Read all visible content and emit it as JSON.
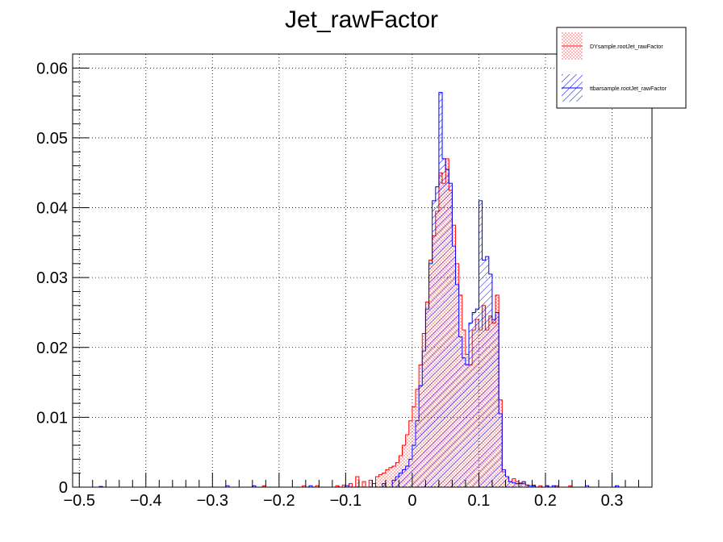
{
  "chart_data": {
    "type": "bar",
    "title": "Jet_rawFactor",
    "xlabel": "",
    "ylabel": "",
    "xlim": [
      -0.51,
      0.36
    ],
    "ylim": [
      0,
      0.062
    ],
    "bin_width": 0.005,
    "grid": true,
    "legend_position": "top-right",
    "x_tick_labels": [
      "−0.5",
      "−0.4",
      "−0.3",
      "−0.2",
      "−0.1",
      "0",
      "0.1",
      "0.2",
      "0.3"
    ],
    "y_tick_labels": [
      "0",
      "0.01",
      "0.02",
      "0.03",
      "0.04",
      "0.05",
      "0.06"
    ],
    "series": [
      {
        "name": "DYsample.rootJet_rawFactor",
        "color": "#ff0000",
        "fill": "dots",
        "points": [
          [
            -0.225,
            0.0002
          ],
          [
            -0.165,
            0.0002
          ],
          [
            -0.145,
            0.0002
          ],
          [
            -0.115,
            0.0002
          ],
          [
            -0.105,
            0.0003
          ],
          [
            -0.095,
            0.0005
          ],
          [
            -0.085,
            0.0015
          ],
          [
            -0.075,
            0.0008
          ],
          [
            -0.065,
            0.001
          ],
          [
            -0.055,
            0.0015
          ],
          [
            -0.05,
            0.0018
          ],
          [
            -0.045,
            0.002
          ],
          [
            -0.04,
            0.0025
          ],
          [
            -0.035,
            0.0028
          ],
          [
            -0.03,
            0.003
          ],
          [
            -0.025,
            0.0035
          ],
          [
            -0.02,
            0.0045
          ],
          [
            -0.015,
            0.006
          ],
          [
            -0.01,
            0.0075
          ],
          [
            -0.005,
            0.0095
          ],
          [
            0.0,
            0.0115
          ],
          [
            0.005,
            0.014
          ],
          [
            0.01,
            0.0175
          ],
          [
            0.015,
            0.022
          ],
          [
            0.02,
            0.0265
          ],
          [
            0.025,
            0.0325
          ],
          [
            0.03,
            0.036
          ],
          [
            0.035,
            0.0395
          ],
          [
            0.04,
            0.045
          ],
          [
            0.045,
            0.0435
          ],
          [
            0.05,
            0.047
          ],
          [
            0.055,
            0.0425
          ],
          [
            0.06,
            0.0375
          ],
          [
            0.065,
            0.032
          ],
          [
            0.07,
            0.0275
          ],
          [
            0.075,
            0.0225
          ],
          [
            0.08,
            0.019
          ],
          [
            0.085,
            0.0175
          ],
          [
            0.09,
            0.0225
          ],
          [
            0.095,
            0.024
          ],
          [
            0.1,
            0.0225
          ],
          [
            0.105,
            0.026
          ],
          [
            0.11,
            0.0225
          ],
          [
            0.115,
            0.0245
          ],
          [
            0.12,
            0.0235
          ],
          [
            0.125,
            0.0275
          ],
          [
            0.13,
            0.0125
          ],
          [
            0.135,
            0.0022
          ],
          [
            0.14,
            0.0015
          ],
          [
            0.145,
            0.0008
          ],
          [
            0.15,
            0.0012
          ],
          [
            0.155,
            0.0008
          ],
          [
            0.16,
            0.0006
          ],
          [
            0.165,
            0.0005
          ],
          [
            0.17,
            0.0003
          ],
          [
            0.18,
            0.0003
          ],
          [
            0.19,
            0.0002
          ],
          [
            0.2,
            0.0002
          ],
          [
            0.215,
            0.0002
          ],
          [
            0.235,
            0.0002
          ]
        ]
      },
      {
        "name": "ttbarsample.rootJet_rawFactor",
        "color": "#0000ff",
        "fill": "hatch",
        "points": [
          [
            -0.47,
            0.0001
          ],
          [
            -0.28,
            0.0002
          ],
          [
            -0.24,
            0.0002
          ],
          [
            -0.155,
            0.0002
          ],
          [
            -0.1,
            0.0002
          ],
          [
            -0.06,
            0.0005
          ],
          [
            -0.045,
            0.0005
          ],
          [
            -0.03,
            0.001
          ],
          [
            -0.025,
            0.0015
          ],
          [
            -0.02,
            0.002
          ],
          [
            -0.015,
            0.0025
          ],
          [
            -0.01,
            0.003
          ],
          [
            -0.005,
            0.004
          ],
          [
            0.0,
            0.006
          ],
          [
            0.005,
            0.0095
          ],
          [
            0.01,
            0.0145
          ],
          [
            0.015,
            0.0195
          ],
          [
            0.02,
            0.0255
          ],
          [
            0.025,
            0.032
          ],
          [
            0.03,
            0.041
          ],
          [
            0.035,
            0.043
          ],
          [
            0.04,
            0.0565
          ],
          [
            0.045,
            0.047
          ],
          [
            0.05,
            0.0455
          ],
          [
            0.055,
            0.0435
          ],
          [
            0.06,
            0.0345
          ],
          [
            0.065,
            0.029
          ],
          [
            0.07,
            0.0215
          ],
          [
            0.075,
            0.0185
          ],
          [
            0.08,
            0.0175
          ],
          [
            0.085,
            0.0235
          ],
          [
            0.09,
            0.025
          ],
          [
            0.095,
            0.0255
          ],
          [
            0.1,
            0.041
          ],
          [
            0.105,
            0.0325
          ],
          [
            0.11,
            0.033
          ],
          [
            0.115,
            0.0305
          ],
          [
            0.12,
            0.024
          ],
          [
            0.125,
            0.025
          ],
          [
            0.13,
            0.0105
          ],
          [
            0.135,
            0.0025
          ],
          [
            0.14,
            0.0015
          ],
          [
            0.145,
            0.0008
          ],
          [
            0.15,
            0.0006
          ],
          [
            0.155,
            0.0005
          ],
          [
            0.16,
            0.0005
          ],
          [
            0.165,
            0.0008
          ],
          [
            0.17,
            0.0003
          ],
          [
            0.175,
            0.0002
          ],
          [
            0.18,
            0.0002
          ],
          [
            0.2,
            0.0002
          ],
          [
            0.21,
            0.0002
          ],
          [
            0.26,
            0.0002
          ],
          [
            0.305,
            0.0002
          ]
        ]
      }
    ]
  }
}
